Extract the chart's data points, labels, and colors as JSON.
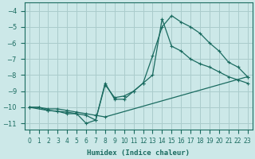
{
  "xlabel": "Humidex (Indice chaleur)",
  "bg_color": "#cce8e8",
  "grid_color": "#aacccc",
  "line_color": "#1a6b60",
  "xlim": [
    -0.5,
    23.5
  ],
  "ylim": [
    -11.4,
    -3.5
  ],
  "xticks": [
    0,
    1,
    2,
    3,
    4,
    5,
    6,
    7,
    8,
    9,
    10,
    11,
    12,
    13,
    14,
    15,
    16,
    17,
    18,
    19,
    20,
    21,
    22,
    23
  ],
  "yticks": [
    -11,
    -10,
    -9,
    -8,
    -7,
    -6,
    -5,
    -4
  ],
  "line1_x": [
    0,
    1,
    2,
    3,
    4,
    5,
    6,
    7,
    8,
    9,
    10,
    11,
    12,
    13,
    14,
    15,
    16,
    17,
    18,
    19,
    20,
    21,
    22,
    23
  ],
  "line1_y": [
    -10.0,
    -10.0,
    -10.2,
    -10.25,
    -10.4,
    -10.4,
    -11.0,
    -10.8,
    -8.5,
    -9.5,
    -9.5,
    -9.0,
    -8.5,
    -6.8,
    -5.0,
    -4.3,
    -4.7,
    -5.0,
    -5.4,
    -6.0,
    -6.5,
    -7.2,
    -7.5,
    -8.1
  ],
  "line2_x": [
    0,
    2,
    3,
    4,
    5,
    6,
    7,
    8,
    9,
    10,
    11,
    12,
    13,
    14,
    15,
    16,
    17,
    18,
    19,
    20,
    21,
    22,
    23
  ],
  "line2_y": [
    -10.0,
    -10.2,
    -10.25,
    -10.3,
    -10.4,
    -10.5,
    -10.8,
    -8.6,
    -9.4,
    -9.3,
    -9.0,
    -8.5,
    -8.0,
    -4.5,
    -6.2,
    -6.5,
    -7.0,
    -7.3,
    -7.5,
    -7.8,
    -8.1,
    -8.3,
    -8.5
  ],
  "line3_x": [
    0,
    1,
    2,
    3,
    4,
    5,
    6,
    7,
    8,
    23
  ],
  "line3_y": [
    -10.0,
    -10.0,
    -10.1,
    -10.1,
    -10.2,
    -10.3,
    -10.4,
    -10.5,
    -10.6,
    -8.1
  ]
}
